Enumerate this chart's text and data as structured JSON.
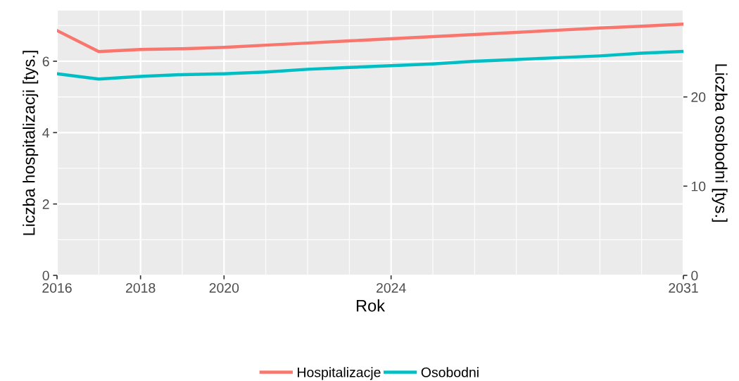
{
  "chart_data": {
    "type": "line",
    "xlabel": "Rok",
    "ylabel": "Liczba hospitalizacji [tys.]",
    "y2label": "Liczba osobodni [tys.]",
    "x": [
      2016,
      2017,
      2018,
      2019,
      2020,
      2021,
      2022,
      2023,
      2024,
      2025,
      2026,
      2027,
      2028,
      2029,
      2030,
      2031
    ],
    "series": [
      {
        "name": "Hospitalizacje",
        "color": "#f8766d",
        "values": [
          6.86,
          6.27,
          6.33,
          6.35,
          6.39,
          6.45,
          6.51,
          6.57,
          6.63,
          6.69,
          6.75,
          6.81,
          6.87,
          6.93,
          6.98,
          7.04
        ]
      },
      {
        "name": "Osobodni",
        "color": "#00bfc4",
        "axis": "y2",
        "values": [
          22.6,
          22.0,
          22.3,
          22.5,
          22.6,
          22.8,
          23.1,
          23.3,
          23.5,
          23.7,
          24.0,
          24.2,
          24.4,
          24.6,
          24.9,
          25.1
        ]
      }
    ],
    "xlim": [
      2016,
      2031
    ],
    "xticks": [
      2016,
      2018,
      2020,
      2024,
      2031
    ],
    "ylim": [
      0,
      7.42
    ],
    "yticks": [
      0,
      2,
      4,
      6
    ],
    "y2lim": [
      0,
      29.68
    ],
    "y2ticks": [
      0,
      10,
      20
    ],
    "grid": true,
    "legend": "bottom",
    "line_style": "solid",
    "marker": "none"
  }
}
